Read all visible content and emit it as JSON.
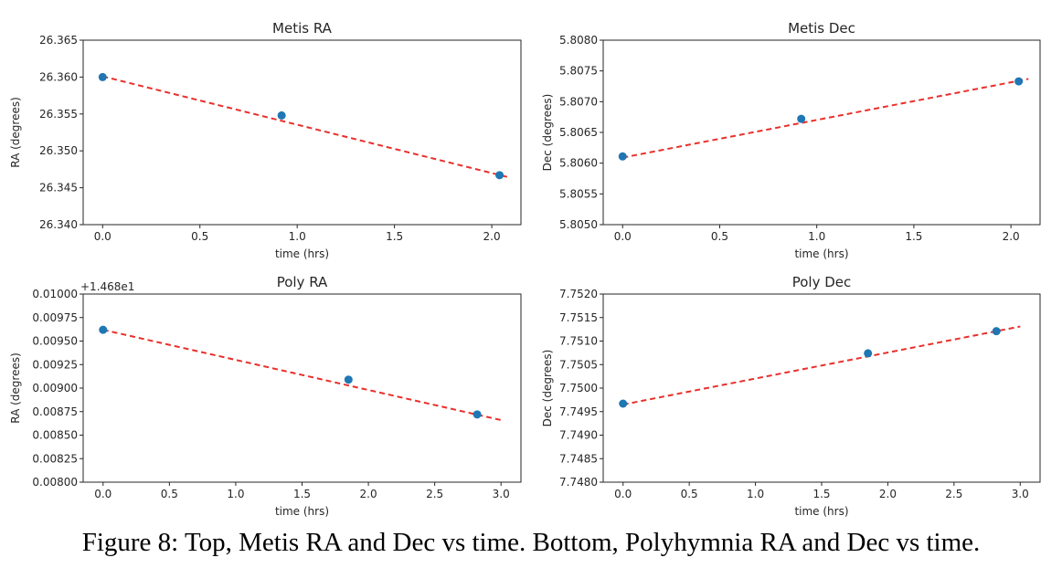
{
  "caption": "Figure 8: Top, Metis RA and Dec vs time. Bottom, Polyhymnia RA and Dec vs time.",
  "colors": {
    "points": "#1f77b4",
    "fit_line": "#e8302c",
    "axes": "#262626"
  },
  "chart_data": [
    {
      "type": "scatter",
      "title": "Metis RA",
      "xlabel": "time (hrs)",
      "ylabel": "RA (degrees)",
      "xlim": [
        -0.1,
        2.15
      ],
      "ylim": [
        26.34,
        26.365
      ],
      "xticks": [
        "0.0",
        "0.5",
        "1.0",
        "1.5",
        "2.0"
      ],
      "yticks": [
        "26.340",
        "26.345",
        "26.350",
        "26.355",
        "26.360",
        "26.365"
      ],
      "offset_text": "",
      "series": [
        {
          "x": [
            0.0,
            0.92,
            2.04
          ],
          "y": [
            26.36,
            26.3548,
            26.3467
          ]
        }
      ],
      "fit_line": {
        "x": [
          0.0,
          2.09
        ],
        "y": [
          26.3601,
          26.3464
        ]
      }
    },
    {
      "type": "scatter",
      "title": "Metis Dec",
      "xlabel": "time (hrs)",
      "ylabel": "Dec (degrees)",
      "xlim": [
        -0.1,
        2.15
      ],
      "ylim": [
        5.805,
        5.808
      ],
      "xticks": [
        "0.0",
        "0.5",
        "1.0",
        "1.5",
        "2.0"
      ],
      "yticks": [
        "5.8050",
        "5.8055",
        "5.8060",
        "5.8065",
        "5.8070",
        "5.8075",
        "5.8080"
      ],
      "offset_text": "",
      "series": [
        {
          "x": [
            0.0,
            0.92,
            2.04
          ],
          "y": [
            5.80611,
            5.80672,
            5.80733
          ]
        }
      ],
      "fit_line": {
        "x": [
          0.0,
          2.09
        ],
        "y": [
          5.80609,
          5.80737
        ]
      }
    },
    {
      "type": "scatter",
      "title": "Poly RA",
      "xlabel": "time (hrs)",
      "ylabel": "RA (degrees)",
      "xlim": [
        -0.15,
        3.15
      ],
      "ylim": [
        0.008,
        0.01
      ],
      "xticks": [
        "0.0",
        "0.5",
        "1.0",
        "1.5",
        "2.0",
        "2.5",
        "3.0"
      ],
      "yticks": [
        "0.00800",
        "0.00825",
        "0.00850",
        "0.00875",
        "0.00900",
        "0.00925",
        "0.00950",
        "0.00975",
        "0.01000"
      ],
      "offset_text": "+1.468e1",
      "series": [
        {
          "x": [
            0.0,
            1.85,
            2.82
          ],
          "y": [
            0.00962,
            0.00909,
            0.00872
          ]
        }
      ],
      "fit_line": {
        "x": [
          0.0,
          3.0
        ],
        "y": [
          0.00962,
          0.00866
        ]
      }
    },
    {
      "type": "scatter",
      "title": "Poly Dec",
      "xlabel": "time (hrs)",
      "ylabel": "Dec (degrees)",
      "xlim": [
        -0.15,
        3.15
      ],
      "ylim": [
        7.748,
        7.752
      ],
      "xticks": [
        "0.0",
        "0.5",
        "1.0",
        "1.5",
        "2.0",
        "2.5",
        "3.0"
      ],
      "yticks": [
        "7.7480",
        "7.7485",
        "7.7490",
        "7.7495",
        "7.7500",
        "7.7505",
        "7.7510",
        "7.7515",
        "7.7520"
      ],
      "offset_text": "",
      "series": [
        {
          "x": [
            0.0,
            1.85,
            2.82
          ],
          "y": [
            7.74967,
            7.75074,
            7.75121
          ]
        }
      ],
      "fit_line": {
        "x": [
          0.0,
          3.0
        ],
        "y": [
          7.74965,
          7.75131
        ]
      }
    }
  ]
}
